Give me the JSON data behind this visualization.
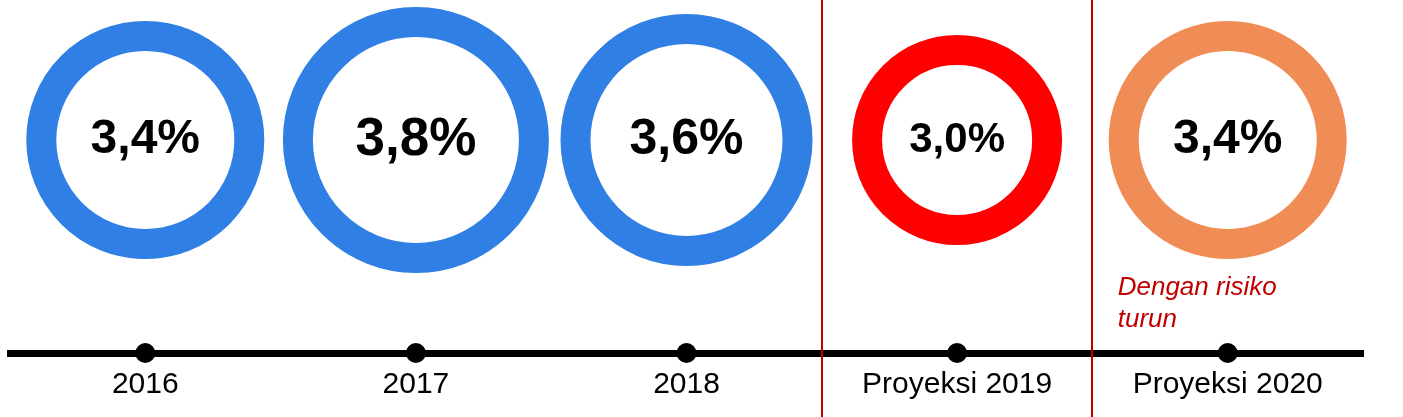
{
  "chart_data": {
    "type": "other",
    "categories": [
      "2016",
      "2017",
      "2018",
      "Proyeksi 2019",
      "Proyeksi 2020"
    ],
    "values": [
      3.4,
      3.8,
      3.6,
      3.0,
      3.4
    ],
    "value_labels": [
      "3,4%",
      "3,8%",
      "3,6%",
      "3,0%",
      "3,4%"
    ],
    "colors": [
      "#2f7fe4",
      "#2f7fe4",
      "#2f7fe4",
      "#ff0000",
      "#f08c55"
    ],
    "annotations": [
      {
        "text": "Dengan risiko turun",
        "x": "Proyeksi 2020"
      }
    ]
  }
}
